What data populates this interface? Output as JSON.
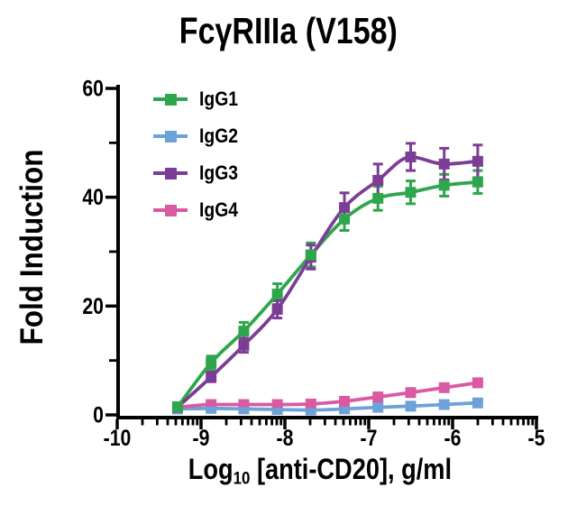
{
  "chart_data": {
    "type": "line",
    "title": "FcγRIIIa (V158)",
    "ylabel": "Fold Induction",
    "xlabel": {
      "prefix": "Log",
      "sub": "10",
      "suffix": " [anti-CD20], g/ml"
    },
    "xlim": [
      -10,
      -5
    ],
    "ylim": [
      0,
      60
    ],
    "x_scale": "log10",
    "grid": false,
    "legend_position": "top-left-inside",
    "x_ticks": [
      -10,
      -9,
      -8,
      -7,
      -6,
      -5
    ],
    "y_ticks": [
      0,
      20,
      40,
      60
    ],
    "y_minor_ticks": [
      10,
      30,
      50
    ],
    "x": [
      -9.28,
      -8.88,
      -8.49,
      -8.09,
      -7.69,
      -7.29,
      -6.89,
      -6.5,
      -6.1,
      -5.7
    ],
    "series": [
      {
        "name": "IgG1",
        "color": "#2EA64B",
        "values": [
          1.5,
          9.6,
          15.4,
          22.2,
          29.4,
          36.0,
          39.8,
          40.9,
          42.2,
          42.8
        ],
        "sd": [
          0.3,
          1.2,
          1.6,
          1.9,
          2.2,
          2.1,
          2.2,
          2.1,
          2.0,
          2.1
        ]
      },
      {
        "name": "IgG2",
        "color": "#6CA2D8",
        "values": [
          1.1,
          1.2,
          1.1,
          1.0,
          0.9,
          1.1,
          1.4,
          1.6,
          1.9,
          2.2
        ],
        "sd": [
          0,
          0,
          0,
          0,
          0,
          0,
          0,
          0,
          0,
          0
        ]
      },
      {
        "name": "IgG3",
        "color": "#7C3D96",
        "values": [
          1.4,
          7.0,
          12.8,
          19.4,
          29.0,
          38.1,
          43.1,
          47.4,
          46.1,
          46.6
        ],
        "sd": [
          0.3,
          0.9,
          1.3,
          1.6,
          2.2,
          2.7,
          3.0,
          2.5,
          2.9,
          3.0
        ]
      },
      {
        "name": "IgG4",
        "color": "#DA5AA2",
        "values": [
          1.4,
          1.9,
          1.9,
          1.9,
          2.0,
          2.5,
          3.3,
          4.1,
          5.0,
          5.9
        ],
        "sd": [
          0,
          0,
          0,
          0,
          0,
          0,
          0,
          0,
          0,
          0
        ]
      }
    ],
    "colors": {
      "axes": "#000000",
      "text": "#000000",
      "background": "#ffffff"
    }
  }
}
